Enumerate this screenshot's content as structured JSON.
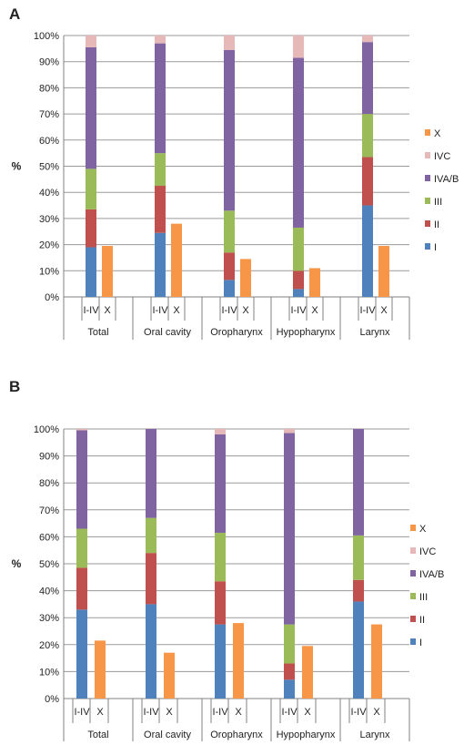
{
  "colors": {
    "I": "#4f81bd",
    "II": "#c0504d",
    "III": "#9bbb59",
    "IVA/B": "#8064a2",
    "IVC": "#e6b9b8",
    "X": "#f79646",
    "grid": "#9a9a9a",
    "axis": "#808080"
  },
  "chart_data": [
    {
      "panel": "A",
      "type": "bar",
      "stacked": true,
      "ylabel": "%",
      "ylim": [
        0,
        100
      ],
      "yticks": [
        "0%",
        "10%",
        "20%",
        "30%",
        "40%",
        "50%",
        "60%",
        "70%",
        "80%",
        "90%",
        "100%"
      ],
      "grid": true,
      "legend_position": "right",
      "legend": [
        "X",
        "IVC",
        "IVA/B",
        "III",
        "II",
        "I"
      ],
      "groups": [
        "Total",
        "Oral cavity",
        "Oropharynx",
        "Hypopharynx",
        "Larynx"
      ],
      "sub_categories": [
        "I-IV",
        "X"
      ],
      "stacked_series": [
        {
          "name": "I",
          "values": [
            19,
            24.5,
            6.5,
            3,
            35
          ]
        },
        {
          "name": "II",
          "values": [
            14.5,
            18,
            10.5,
            7,
            18.5
          ]
        },
        {
          "name": "III",
          "values": [
            15.5,
            12.5,
            16,
            16.5,
            16.5
          ]
        },
        {
          "name": "IVA/B",
          "values": [
            46.5,
            42,
            61.5,
            65,
            27.5
          ]
        },
        {
          "name": "IVC",
          "values": [
            4.5,
            3,
            5.5,
            8.5,
            2.5
          ]
        }
      ],
      "x_values": [
        19.5,
        28,
        14.5,
        11,
        19.5
      ]
    },
    {
      "panel": "B",
      "type": "bar",
      "stacked": true,
      "ylabel": "%",
      "ylim": [
        0,
        100
      ],
      "yticks": [
        "0%",
        "10%",
        "20%",
        "30%",
        "40%",
        "50%",
        "60%",
        "70%",
        "80%",
        "90%",
        "100%"
      ],
      "grid": true,
      "legend_position": "right",
      "legend": [
        "X",
        "IVC",
        "IVA/B",
        "III",
        "II",
        "I"
      ],
      "groups": [
        "Total",
        "Oral cavity",
        "Oropharynx",
        "Hypopharynx",
        "Larynx"
      ],
      "sub_categories": [
        "I-IV",
        "X"
      ],
      "stacked_series": [
        {
          "name": "I",
          "values": [
            33,
            35,
            27.5,
            7,
            36
          ]
        },
        {
          "name": "II",
          "values": [
            15.5,
            19,
            16,
            6,
            8
          ]
        },
        {
          "name": "III",
          "values": [
            14.5,
            13,
            18,
            14.5,
            16.5
          ]
        },
        {
          "name": "IVA/B",
          "values": [
            36.5,
            33,
            36.5,
            71,
            39.5
          ]
        },
        {
          "name": "IVC",
          "values": [
            0.5,
            0,
            2,
            1.5,
            0
          ]
        }
      ],
      "x_values": [
        21.5,
        17,
        28,
        19.5,
        27.5
      ]
    }
  ]
}
